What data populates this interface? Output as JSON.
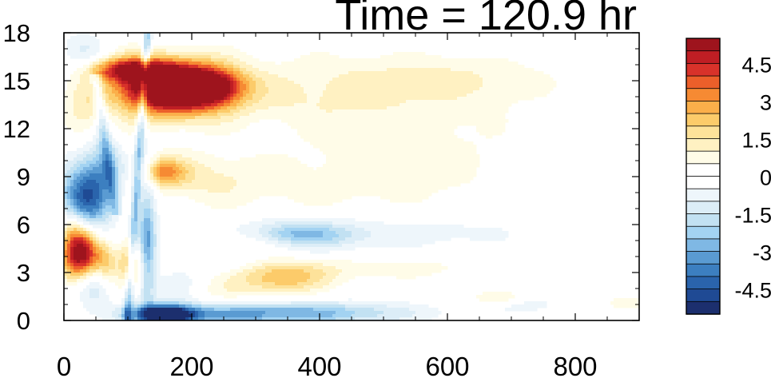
{
  "title": "Time = 120.9 hr",
  "chart_data": {
    "type": "heatmap",
    "title": "Time = 120.9 hr",
    "xlabel": "",
    "ylabel": "",
    "xlim": [
      0,
      900
    ],
    "ylim": [
      0,
      18
    ],
    "x_ticks": [
      0,
      200,
      400,
      600,
      800
    ],
    "x_tick_labels": [
      "0",
      "200",
      "400",
      "600",
      "800"
    ],
    "y_ticks": [
      0,
      3,
      6,
      9,
      12,
      15,
      18
    ],
    "y_tick_labels": [
      "0",
      "3",
      "6",
      "9",
      "12",
      "15",
      "18"
    ],
    "colorbar": {
      "levels": [
        -5.5,
        -5,
        -4.5,
        -4,
        -3.5,
        -3,
        -2.5,
        -2,
        -1.5,
        -1,
        -0.5,
        0,
        0.5,
        1,
        1.5,
        2,
        2.5,
        3,
        3.5,
        4,
        4.5,
        5,
        5.5
      ],
      "colors": [
        "#1c2f6e",
        "#1f4a94",
        "#2a64ac",
        "#3c7fc0",
        "#5a9bd2",
        "#7fb8e4",
        "#a3d3f2",
        "#c2e1f2",
        "#dcedf7",
        "#eef6fb",
        "#ffffff",
        "#ffffff",
        "#fffce8",
        "#fff1c2",
        "#fde29a",
        "#fccb6a",
        "#fbaf4a",
        "#f68a33",
        "#ec5f2a",
        "#d8322a",
        "#bf1e24",
        "#9e141d"
      ],
      "tick_values": [
        4.5,
        3,
        1.5,
        0,
        -1.5,
        -3,
        -4.5
      ],
      "tick_labels": [
        "4.5",
        "3",
        "1.5",
        "0",
        "-1.5",
        "-3",
        "-4.5"
      ]
    },
    "features": [
      {
        "x": 165,
        "y": 14.6,
        "sx": 55,
        "sy": 1.1,
        "v": 8.0
      },
      {
        "x": 235,
        "y": 14.6,
        "sx": 35,
        "sy": 0.8,
        "v": 3.5
      },
      {
        "x": 100,
        "y": 15.7,
        "sx": 40,
        "sy": 0.5,
        "v": 4.0
      },
      {
        "x": 380,
        "y": 14.0,
        "sx": 220,
        "sy": 1.8,
        "v": 1.0
      },
      {
        "x": 600,
        "y": 15.2,
        "sx": 120,
        "sy": 1.0,
        "v": 0.7
      },
      {
        "x": 30,
        "y": 16.8,
        "sx": 25,
        "sy": 1.0,
        "v": -0.9
      },
      {
        "x": 35,
        "y": 12.6,
        "sx": 25,
        "sy": 1.2,
        "v": 1.2
      },
      {
        "x": 60,
        "y": 11.5,
        "sx": 15,
        "sy": 1.5,
        "v": -0.8
      },
      {
        "x": 35,
        "y": 7.8,
        "sx": 28,
        "sy": 1.7,
        "v": -4.5
      },
      {
        "x": 70,
        "y": 9.5,
        "sx": 20,
        "sy": 1.2,
        "v": -1.5
      },
      {
        "x": 25,
        "y": 4.2,
        "sx": 20,
        "sy": 1.2,
        "v": 6.0
      },
      {
        "x": 65,
        "y": 3.6,
        "sx": 15,
        "sy": 1.0,
        "v": 2.0
      },
      {
        "x": 15,
        "y": 6.0,
        "sx": 15,
        "sy": 0.8,
        "v": 1.2
      },
      {
        "x": 45,
        "y": 2.3,
        "sx": 20,
        "sy": 1.0,
        "v": -1.8
      },
      {
        "x": 105,
        "y": 3.8,
        "sx": 12,
        "sy": 1.2,
        "v": 2.5
      },
      {
        "x": 130,
        "y": 5.0,
        "sx": 10,
        "sy": 3.0,
        "v": -3.0
      },
      {
        "x": 160,
        "y": 0.35,
        "sx": 30,
        "sy": 0.4,
        "v": -6.0
      },
      {
        "x": 270,
        "y": 0.4,
        "sx": 120,
        "sy": 0.5,
        "v": -3.0
      },
      {
        "x": 450,
        "y": 0.5,
        "sx": 100,
        "sy": 0.5,
        "v": -1.2
      },
      {
        "x": 155,
        "y": 9.3,
        "sx": 25,
        "sy": 0.6,
        "v": 2.5
      },
      {
        "x": 220,
        "y": 9.0,
        "sx": 60,
        "sy": 1.0,
        "v": 0.8
      },
      {
        "x": 290,
        "y": 5.1,
        "sx": 50,
        "sy": 0.6,
        "v": 1.3
      },
      {
        "x": 360,
        "y": 5.4,
        "sx": 60,
        "sy": 0.5,
        "v": -2.0
      },
      {
        "x": 350,
        "y": 5.2,
        "sx": 120,
        "sy": 1.0,
        "v": -0.8
      },
      {
        "x": 470,
        "y": 5.6,
        "sx": 150,
        "sy": 0.8,
        "v": -0.5
      },
      {
        "x": 340,
        "y": 2.6,
        "sx": 50,
        "sy": 0.7,
        "v": 2.2
      },
      {
        "x": 430,
        "y": 3.3,
        "sx": 200,
        "sy": 0.6,
        "v": 0.8
      },
      {
        "x": 250,
        "y": 3.5,
        "sx": 40,
        "sy": 0.6,
        "v": -0.8
      },
      {
        "x": 400,
        "y": 8.0,
        "sx": 220,
        "sy": 1.6,
        "v": 0.5
      },
      {
        "x": 310,
        "y": 11.5,
        "sx": 80,
        "sy": 1.2,
        "v": -0.4
      },
      {
        "x": 500,
        "y": 10.5,
        "sx": 200,
        "sy": 1.8,
        "v": 0.45
      },
      {
        "x": 650,
        "y": 5.5,
        "sx": 80,
        "sy": 0.8,
        "v": -0.4
      },
      {
        "x": 680,
        "y": 1.4,
        "sx": 30,
        "sy": 0.3,
        "v": 1.2
      },
      {
        "x": 720,
        "y": 1.0,
        "sx": 40,
        "sy": 0.4,
        "v": -0.8
      },
      {
        "x": 880,
        "y": 1.1,
        "sx": 20,
        "sy": 0.3,
        "v": 1.0
      },
      {
        "x": 180,
        "y": 2.0,
        "sx": 30,
        "sy": 1.0,
        "v": -1.0
      },
      {
        "x": 230,
        "y": 1.6,
        "sx": 50,
        "sy": 0.8,
        "v": 0.7
      }
    ],
    "ridges": [
      {
        "x1": 100,
        "x2": 130,
        "y1": 0.5,
        "y2": 17.5,
        "w": 5,
        "v": -2.5
      },
      {
        "x1": 50,
        "x2": 80,
        "y1": 15.0,
        "y2": 7.0,
        "w": 6,
        "v": -1.5
      }
    ]
  }
}
